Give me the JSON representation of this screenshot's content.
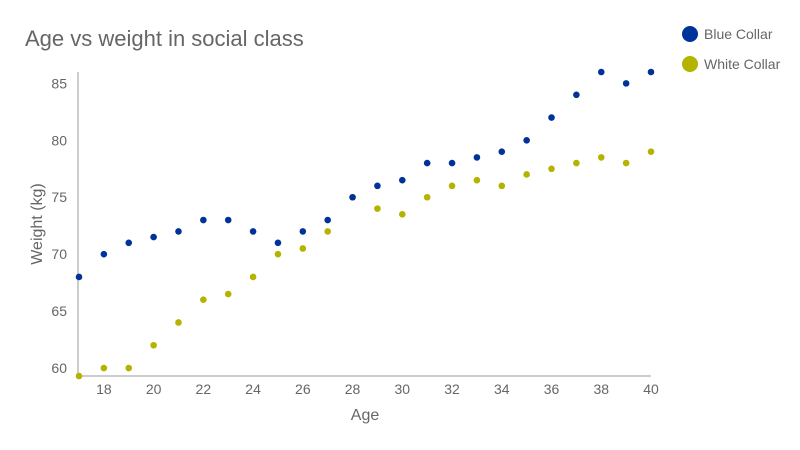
{
  "chart_data": {
    "type": "scatter",
    "title": "Age vs weight in social class",
    "xlabel": "Age",
    "ylabel": "Weight (kg)",
    "xlim": [
      17,
      40
    ],
    "ylim": [
      59.3,
      86
    ],
    "xticks": [
      18,
      20,
      22,
      24,
      26,
      28,
      30,
      32,
      34,
      36,
      38,
      40
    ],
    "yticks": [
      60,
      65,
      70,
      75,
      80,
      85
    ],
    "grid": false,
    "legend_position": "top-right",
    "x": [
      17,
      18,
      19,
      20,
      21,
      22,
      23,
      24,
      25,
      26,
      27,
      28,
      29,
      30,
      31,
      32,
      33,
      34,
      35,
      36,
      37,
      38,
      39,
      40
    ],
    "series": [
      {
        "name": "Blue Collar",
        "color": "#003399",
        "values": [
          68,
          70,
          71,
          71.5,
          72,
          73,
          73,
          72,
          71,
          72,
          73,
          75,
          76,
          76.5,
          78,
          78,
          78.5,
          79,
          80,
          82,
          84,
          86,
          85,
          86
        ]
      },
      {
        "name": "White Collar",
        "color": "#b3b300",
        "values": [
          59.3,
          60,
          60,
          62,
          64,
          66,
          66.5,
          68,
          70,
          70.5,
          72,
          75,
          74,
          73.5,
          75,
          76,
          76.5,
          76,
          77,
          77.5,
          78,
          78.5,
          78,
          79
        ]
      }
    ]
  }
}
